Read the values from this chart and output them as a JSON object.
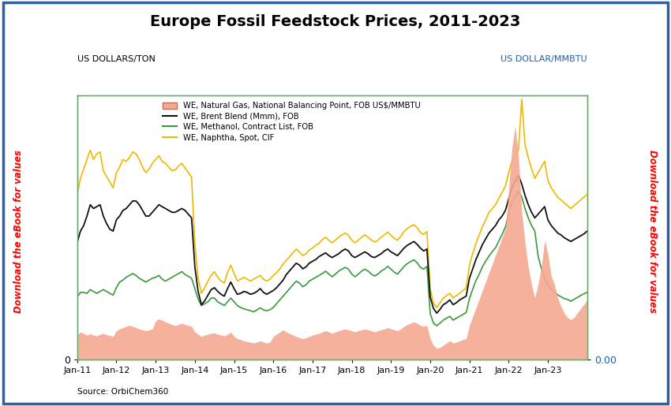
{
  "title": "Europe Fossil Feedstock Prices, 2011-2023",
  "ylabel_left": "US DOLLARS/TON",
  "ylabel_right": "US DOLLAR/MMBTU",
  "source": "Source: OrbiChem360",
  "legend": [
    {
      "label": "WE, Natural Gas, National Balancing Point, FOB US$/MMBTU",
      "color": "#f4a990",
      "type": "area"
    },
    {
      "label": "WE, Brent Blend (Mmm), FOB",
      "color": "#000000",
      "type": "line"
    },
    {
      "label": "WE, Methanol, Contract List, FOB",
      "color": "#3a9a3a",
      "type": "line"
    },
    {
      "label": "WE, Naphtha, Spot, CIF",
      "color": "#f0b800",
      "type": "line"
    }
  ],
  "watermark": "Download the eBook for values",
  "border_color": "#3060a0",
  "plot_border_color": "#5a8a5a",
  "background_color": "#ffffff",
  "x_tick_labels": [
    "Jan-11",
    "Jan-12",
    "Jan-13",
    "Jan-14",
    "Jan-15",
    "Jan-16",
    "Jan-17",
    "Jan-18",
    "Jan-19",
    "Jan-20",
    "Jan-21",
    "Jan-22",
    "Jan-23"
  ],
  "ylim_left": [
    0,
    1400
  ],
  "ylim_right": [
    0,
    60
  ],
  "brent_values": [
    620,
    680,
    710,
    760,
    820,
    800,
    810,
    820,
    760,
    720,
    690,
    680,
    740,
    760,
    790,
    800,
    820,
    840,
    840,
    820,
    790,
    760,
    760,
    780,
    800,
    820,
    810,
    800,
    790,
    780,
    780,
    790,
    800,
    790,
    770,
    750,
    490,
    360,
    290,
    310,
    340,
    370,
    380,
    360,
    345,
    335,
    375,
    410,
    375,
    345,
    350,
    360,
    355,
    345,
    350,
    360,
    375,
    355,
    345,
    355,
    365,
    380,
    400,
    420,
    450,
    470,
    490,
    510,
    500,
    480,
    490,
    510,
    520,
    530,
    545,
    555,
    565,
    550,
    540,
    550,
    560,
    575,
    585,
    575,
    550,
    540,
    550,
    560,
    570,
    560,
    545,
    540,
    550,
    560,
    575,
    585,
    570,
    560,
    550,
    570,
    590,
    605,
    615,
    625,
    610,
    590,
    575,
    585,
    330,
    270,
    245,
    265,
    290,
    300,
    315,
    290,
    300,
    315,
    325,
    335,
    430,
    480,
    530,
    570,
    610,
    640,
    670,
    690,
    710,
    740,
    760,
    790,
    850,
    910,
    945,
    975,
    930,
    870,
    820,
    780,
    750,
    770,
    790,
    810,
    740,
    710,
    690,
    670,
    660,
    645,
    635,
    625,
    635,
    645,
    655,
    665,
    680
  ],
  "naphtha_values": [
    870,
    960,
    1010,
    1060,
    1110,
    1060,
    1090,
    1100,
    1000,
    970,
    940,
    910,
    990,
    1020,
    1060,
    1050,
    1070,
    1100,
    1090,
    1060,
    1020,
    990,
    1010,
    1040,
    1060,
    1080,
    1050,
    1040,
    1020,
    1000,
    1005,
    1025,
    1040,
    1015,
    990,
    965,
    610,
    430,
    350,
    380,
    415,
    445,
    465,
    435,
    415,
    405,
    460,
    500,
    455,
    415,
    425,
    435,
    425,
    415,
    425,
    435,
    445,
    425,
    415,
    425,
    445,
    460,
    480,
    505,
    525,
    545,
    565,
    585,
    570,
    550,
    560,
    580,
    590,
    605,
    615,
    635,
    648,
    632,
    618,
    632,
    648,
    660,
    670,
    658,
    632,
    618,
    632,
    648,
    660,
    648,
    632,
    622,
    632,
    648,
    660,
    675,
    658,
    642,
    632,
    652,
    678,
    694,
    705,
    714,
    698,
    672,
    662,
    678,
    370,
    300,
    275,
    300,
    325,
    338,
    350,
    325,
    338,
    350,
    365,
    378,
    500,
    560,
    615,
    660,
    705,
    740,
    780,
    800,
    820,
    855,
    885,
    920,
    990,
    1050,
    1080,
    1110,
    1380,
    1140,
    1070,
    1010,
    960,
    990,
    1020,
    1050,
    950,
    910,
    885,
    860,
    845,
    830,
    815,
    800,
    815,
    830,
    845,
    860,
    875
  ],
  "methanol_values": [
    330,
    355,
    355,
    350,
    370,
    360,
    350,
    360,
    370,
    360,
    350,
    340,
    380,
    410,
    420,
    435,
    445,
    455,
    445,
    430,
    420,
    410,
    420,
    430,
    435,
    445,
    425,
    415,
    425,
    435,
    445,
    455,
    465,
    450,
    440,
    430,
    375,
    320,
    285,
    295,
    305,
    325,
    325,
    305,
    295,
    285,
    305,
    325,
    305,
    285,
    275,
    268,
    263,
    258,
    252,
    262,
    273,
    262,
    258,
    263,
    275,
    295,
    315,
    335,
    355,
    375,
    395,
    415,
    405,
    385,
    395,
    415,
    425,
    435,
    445,
    455,
    468,
    452,
    438,
    452,
    468,
    478,
    488,
    478,
    452,
    438,
    452,
    468,
    478,
    468,
    452,
    442,
    452,
    468,
    478,
    493,
    478,
    462,
    452,
    472,
    493,
    508,
    518,
    528,
    512,
    488,
    478,
    493,
    242,
    192,
    178,
    192,
    208,
    218,
    228,
    208,
    218,
    228,
    238,
    248,
    322,
    372,
    418,
    452,
    492,
    522,
    548,
    572,
    592,
    628,
    662,
    702,
    772,
    832,
    862,
    892,
    862,
    800,
    750,
    710,
    680,
    548,
    482,
    432,
    392,
    372,
    358,
    342,
    332,
    322,
    318,
    308,
    318,
    328,
    338,
    348,
    355
  ],
  "natgas_values": [
    5.5,
    6.2,
    5.9,
    5.5,
    5.8,
    5.5,
    5.3,
    5.7,
    5.9,
    5.6,
    5.4,
    5.2,
    6.5,
    6.9,
    7.2,
    7.5,
    7.7,
    7.5,
    7.2,
    6.9,
    6.7,
    6.5,
    6.7,
    6.9,
    8.7,
    9.2,
    8.9,
    8.5,
    8.2,
    7.9,
    7.7,
    7.9,
    8.2,
    7.9,
    7.7,
    7.5,
    6.2,
    5.7,
    5.2,
    5.5,
    5.7,
    5.9,
    6.0,
    5.7,
    5.5,
    5.3,
    5.7,
    6.2,
    5.2,
    4.7,
    4.5,
    4.2,
    4.0,
    3.9,
    3.7,
    3.9,
    4.2,
    3.9,
    3.7,
    3.9,
    5.2,
    5.7,
    6.2,
    6.7,
    6.2,
    5.9,
    5.5,
    5.2,
    4.9,
    4.7,
    4.9,
    5.2,
    5.5,
    5.7,
    5.9,
    6.2,
    6.5,
    6.2,
    5.9,
    6.2,
    6.5,
    6.7,
    6.9,
    6.7,
    6.5,
    6.2,
    6.5,
    6.7,
    6.9,
    6.7,
    6.5,
    6.2,
    6.5,
    6.7,
    6.9,
    7.2,
    6.9,
    6.7,
    6.5,
    6.9,
    7.5,
    7.9,
    8.2,
    8.5,
    8.2,
    7.7,
    7.5,
    7.7,
    4.7,
    3.2,
    2.5,
    2.7,
    3.2,
    3.7,
    4.2,
    3.7,
    3.9,
    4.2,
    4.5,
    4.7,
    7.7,
    9.7,
    11.7,
    13.7,
    15.7,
    17.7,
    19.7,
    21.7,
    23.7,
    25.7,
    27.7,
    29.7,
    38.5,
    48.0,
    53.0,
    46.0,
    33.5,
    26.5,
    21.0,
    17.0,
    14.0,
    17.0,
    21.0,
    27.0,
    24.0,
    19.0,
    17.0,
    14.0,
    12.0,
    10.5,
    9.5,
    9.0,
    9.5,
    10.5,
    11.5,
    12.5,
    13.5
  ]
}
